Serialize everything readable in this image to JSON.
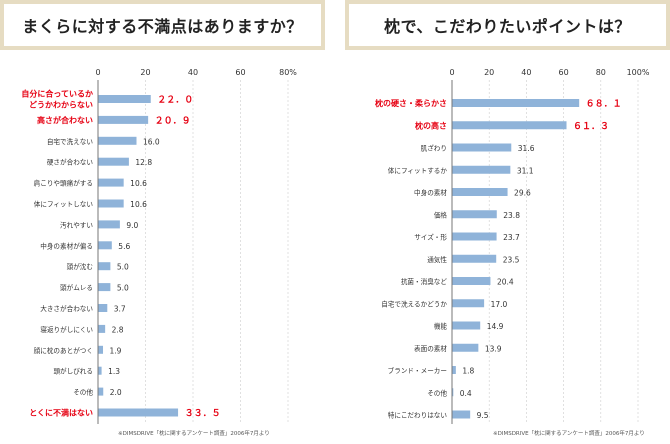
{
  "chart_data": [
    {
      "type": "bar",
      "title": "まくらに対する不満点はありますか？",
      "source": "※DIMSDRIVE「枕に関するアンケート調査」2006年7月より",
      "ticks": [
        "0",
        "20",
        "40",
        "60",
        "80%"
      ],
      "xlim": [
        0,
        80
      ],
      "bar_color": "#8fb3d9",
      "highlight_color": "#e60012",
      "categories": [
        "自分に合っているか\nどうかわからない",
        "高さが合わない",
        "自宅で洗えない",
        "硬さが合わない",
        "肩こりや頭痛がする",
        "体にフィットしない",
        "汚れやすい",
        "中身の素材が偏る",
        "頭が沈む",
        "頭がムレる",
        "大きさが合わない",
        "寝返りがしにくい",
        "顔に枕のあとがつく",
        "頭がしびれる",
        "その他",
        "とくに不満はない"
      ],
      "values": [
        22.0,
        20.9,
        16.0,
        12.8,
        10.6,
        10.6,
        9.0,
        5.6,
        5.0,
        5.0,
        3.7,
        2.8,
        1.9,
        1.3,
        2.0,
        33.5
      ],
      "value_labels": [
        "２２．０",
        "２０．９",
        "16.0",
        "12.8",
        "10.6",
        "10.6",
        "9.0",
        "5.6",
        "5.0",
        "5.0",
        "3.7",
        "2.8",
        "1.9",
        "1.3",
        "2.0",
        "３３．５"
      ],
      "highlight": [
        true,
        true,
        false,
        false,
        false,
        false,
        false,
        false,
        false,
        false,
        false,
        false,
        false,
        false,
        false,
        true
      ]
    },
    {
      "type": "bar",
      "title": "枕で、こだわりたいポイントは？",
      "source": "※DIMSDRIVE「枕に関するアンケート調査」2006年7月より",
      "ticks": [
        "0",
        "20",
        "40",
        "60",
        "80",
        "100%"
      ],
      "xlim": [
        0,
        100
      ],
      "bar_color": "#8fb3d9",
      "highlight_color": "#e60012",
      "categories": [
        "枕の硬さ・柔らかさ",
        "枕の高さ",
        "肌ざわり",
        "体にフィットするか",
        "中身の素材",
        "価格",
        "サイズ・形",
        "通気性",
        "抗菌・消臭など",
        "自宅で洗えるかどうか",
        "機能",
        "表面の素材",
        "ブランド・メーカー",
        "その他",
        "特にこだわりはない"
      ],
      "values": [
        68.1,
        61.3,
        31.6,
        31.1,
        29.6,
        23.8,
        23.7,
        23.5,
        20.4,
        17.0,
        14.9,
        13.9,
        1.8,
        0.4,
        9.5
      ],
      "value_labels": [
        "６８．１",
        "６１．３",
        "31.6",
        "31.1",
        "29.6",
        "23.8",
        "23.7",
        "23.5",
        "20.4",
        "17.0",
        "14.9",
        "13.9",
        "1.8",
        "0.4",
        "9.5"
      ],
      "highlight": [
        true,
        true,
        false,
        false,
        false,
        false,
        false,
        false,
        false,
        false,
        false,
        false,
        false,
        false,
        false
      ]
    }
  ]
}
